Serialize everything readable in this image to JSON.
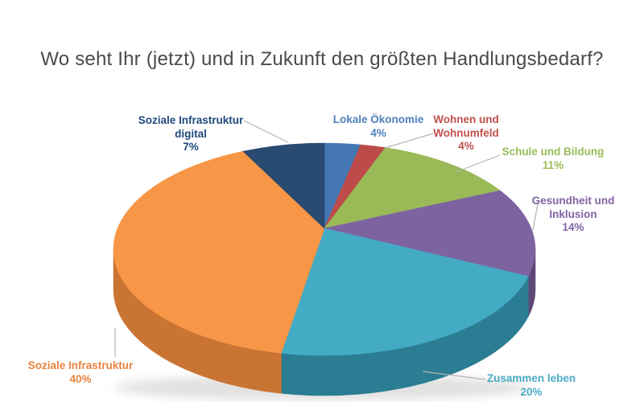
{
  "title": "Wo seht Ihr (jetzt) und in Zukunft den größten Handlungsbedarf?",
  "chart_data": {
    "type": "pie",
    "title": "Wo seht Ihr (jetzt) und in Zukunft den größten Handlungsbedarf?",
    "unit": "percent",
    "style": "3d",
    "start_angle_deg": 0,
    "direction": "clockwise",
    "legend_position": "none",
    "total": 100,
    "segments": [
      {
        "id": "lokale-oekonomie",
        "label": "Lokale Ökonomie",
        "label_lines": [
          "Lokale Ökonomie"
        ],
        "value": 4,
        "value_label": "4%",
        "color": "#4577B5",
        "side_color": "#2F5580",
        "label_color": "#4F81BD"
      },
      {
        "id": "wohnen-und-wohnumfeld",
        "label": "Wohnen und Wohnumfeld",
        "label_lines": [
          "Wohnen und",
          "Wohnumfeld"
        ],
        "value": 4,
        "value_label": "4%",
        "color": "#BC4B49",
        "side_color": "#8F3836",
        "label_color": "#C0504D"
      },
      {
        "id": "schule-und-bildung",
        "label": "Schule und Bildung",
        "label_lines": [
          "Schule und Bildung"
        ],
        "value": 11,
        "value_label": "11%",
        "color": "#9ABA58",
        "side_color": "#738C41",
        "label_color": "#9BBB59"
      },
      {
        "id": "gesundheit-und-inklusion",
        "label": "Gesundheit und Inklusion",
        "label_lines": [
          "Gesundheit und",
          "Inklusion"
        ],
        "value": 14,
        "value_label": "14%",
        "color": "#7E63A1",
        "side_color": "#5D4878",
        "label_color": "#8064A2"
      },
      {
        "id": "zusammen-leben",
        "label": "Zusammen leben",
        "label_lines": [
          "Zusammen leben"
        ],
        "value": 20,
        "value_label": "20%",
        "color": "#44ABC5",
        "side_color": "#2A7D92",
        "label_color": "#4BACC6"
      },
      {
        "id": "soziale-infrastruktur",
        "label": "Soziale Infrastruktur",
        "label_lines": [
          "Soziale Infrastruktur"
        ],
        "value": 40,
        "value_label": "40%",
        "color": "#F79646",
        "side_color": "#CA7434",
        "label_color": "#E8823E"
      },
      {
        "id": "soziale-infrastruktur-digital",
        "label": "Soziale Infrastruktur digital",
        "label_lines": [
          "Soziale Infrastruktur",
          "digital"
        ],
        "value": 7,
        "value_label": "7%",
        "color": "#294A71",
        "side_color": "#1D3552",
        "label_color": "#1F497D"
      }
    ]
  }
}
